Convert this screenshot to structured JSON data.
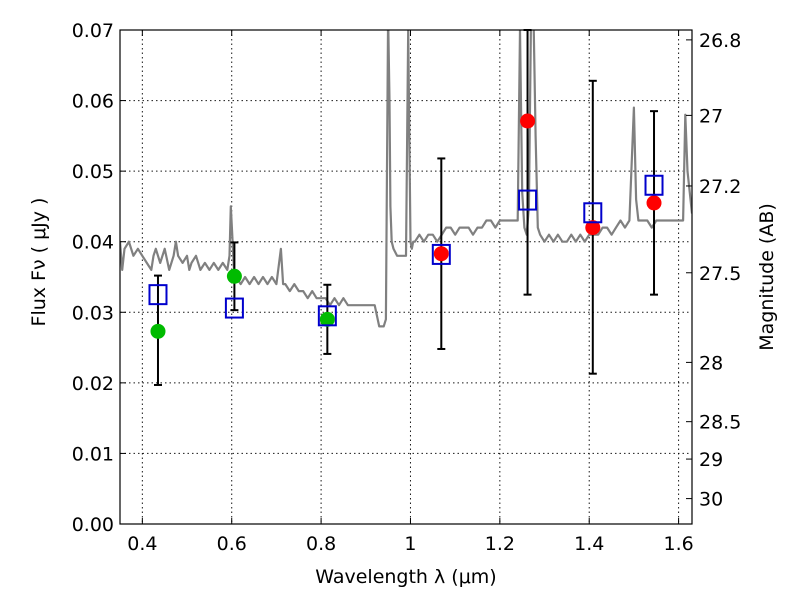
{
  "chart_data": {
    "type": "scatter",
    "xlabel": "Wavelength  λ (μm)",
    "ylabel": "Flux  Fν  ( μJy )",
    "y2label": "Magnitude (AB)",
    "xlim": [
      0.35,
      1.63
    ],
    "ylim": [
      0.0,
      0.07
    ],
    "grid": true,
    "x_ticks": [
      0.4,
      0.6,
      0.8,
      1.0,
      1.2,
      1.4,
      1.6
    ],
    "x_tick_labels": [
      "0.4",
      "0.6",
      "0.8",
      "1",
      "1.2",
      "1.4",
      "1.6"
    ],
    "y_ticks": [
      0.0,
      0.01,
      0.02,
      0.03,
      0.04,
      0.05,
      0.06,
      0.07
    ],
    "y_tick_labels": [
      "0.00",
      "0.01",
      "0.02",
      "0.03",
      "0.04",
      "0.05",
      "0.06",
      "0.07"
    ],
    "y2_ticks": [
      {
        "label": "26.8",
        "flux": 0.0686
      },
      {
        "label": "27",
        "flux": 0.0579
      },
      {
        "label": "27.2",
        "flux": 0.0479
      },
      {
        "label": "27.5",
        "flux": 0.0356
      },
      {
        "label": "28",
        "flux": 0.0229
      },
      {
        "label": "28.5",
        "flux": 0.0145
      },
      {
        "label": "29",
        "flux": 0.0092
      },
      {
        "label": "30",
        "flux": 0.0036
      }
    ],
    "colors": {
      "model": "#808080",
      "green_points": "#00bb00",
      "red_points": "#ff0000",
      "model_photometry": "#0000cc",
      "error_bars": "#000000"
    },
    "series": [
      {
        "values": [
          {
            "x": 0.435,
            "y": 0.0273,
            "yerr": [
              0.0197,
              0.0352
            ]
          },
          {
            "x": 0.606,
            "y": 0.0351,
            "yerr": [
              0.0303,
              0.0399
            ]
          },
          {
            "x": 0.814,
            "y": 0.029,
            "yerr": [
              0.0241,
              0.0339
            ]
          }
        ]
      },
      {
        "values": [
          {
            "x": 1.069,
            "y": 0.0383,
            "yerr": [
              0.0248,
              0.0518
            ]
          },
          {
            "x": 1.262,
            "y": 0.0571,
            "yerr": [
              0.0325,
              0.07
            ]
          },
          {
            "x": 1.408,
            "y": 0.042,
            "yerr": [
              0.0213,
              0.0628
            ]
          },
          {
            "x": 1.545,
            "y": 0.0455,
            "yerr": [
              0.0325,
              0.0585
            ]
          }
        ]
      },
      {
        "marker": "square",
        "values": [
          {
            "x": 0.435,
            "y": 0.0325
          },
          {
            "x": 0.606,
            "y": 0.0306
          },
          {
            "x": 0.814,
            "y": 0.0295
          },
          {
            "x": 1.069,
            "y": 0.0382
          },
          {
            "x": 1.262,
            "y": 0.0459
          },
          {
            "x": 1.408,
            "y": 0.0441
          },
          {
            "x": 1.545,
            "y": 0.048
          }
        ]
      },
      {
        "type": "line",
        "x": [
          0.35,
          0.355,
          0.36,
          0.37,
          0.38,
          0.39,
          0.4,
          0.41,
          0.42,
          0.425,
          0.43,
          0.44,
          0.45,
          0.46,
          0.47,
          0.475,
          0.48,
          0.49,
          0.5,
          0.505,
          0.51,
          0.52,
          0.53,
          0.54,
          0.55,
          0.56,
          0.57,
          0.58,
          0.59,
          0.595,
          0.598,
          0.602,
          0.605,
          0.61,
          0.62,
          0.63,
          0.64,
          0.65,
          0.66,
          0.67,
          0.68,
          0.69,
          0.7,
          0.71,
          0.715,
          0.72,
          0.73,
          0.74,
          0.75,
          0.76,
          0.77,
          0.78,
          0.79,
          0.8,
          0.81,
          0.82,
          0.83,
          0.84,
          0.85,
          0.86,
          0.87,
          0.88,
          0.89,
          0.9,
          0.91,
          0.92,
          0.93,
          0.94,
          0.945,
          0.95,
          0.953,
          0.955,
          0.958,
          0.962,
          0.97,
          0.98,
          0.99,
          0.995,
          1.0,
          1.003,
          1.006,
          1.01,
          1.02,
          1.03,
          1.04,
          1.05,
          1.06,
          1.07,
          1.08,
          1.09,
          1.1,
          1.11,
          1.12,
          1.13,
          1.14,
          1.15,
          1.16,
          1.17,
          1.18,
          1.19,
          1.2,
          1.21,
          1.22,
          1.23,
          1.24,
          1.245,
          1.25,
          1.255,
          1.26,
          1.265,
          1.27,
          1.275,
          1.28,
          1.285,
          1.29,
          1.3,
          1.31,
          1.32,
          1.33,
          1.34,
          1.35,
          1.36,
          1.37,
          1.38,
          1.39,
          1.4,
          1.41,
          1.42,
          1.43,
          1.44,
          1.45,
          1.46,
          1.47,
          1.48,
          1.49,
          1.5,
          1.505,
          1.51,
          1.52,
          1.53,
          1.54,
          1.55,
          1.56,
          1.57,
          1.58,
          1.59,
          1.6,
          1.61,
          1.615,
          1.62,
          1.63
        ],
        "y": [
          0.04,
          0.036,
          0.039,
          0.04,
          0.038,
          0.039,
          0.038,
          0.037,
          0.036,
          0.038,
          0.039,
          0.037,
          0.039,
          0.036,
          0.038,
          0.04,
          0.038,
          0.037,
          0.038,
          0.036,
          0.037,
          0.038,
          0.036,
          0.037,
          0.036,
          0.037,
          0.036,
          0.037,
          0.036,
          0.038,
          0.045,
          0.04,
          0.036,
          0.035,
          0.034,
          0.035,
          0.034,
          0.035,
          0.034,
          0.035,
          0.034,
          0.035,
          0.034,
          0.039,
          0.034,
          0.034,
          0.033,
          0.034,
          0.033,
          0.033,
          0.032,
          0.033,
          0.032,
          0.032,
          0.032,
          0.031,
          0.032,
          0.031,
          0.032,
          0.031,
          0.031,
          0.031,
          0.031,
          0.031,
          0.031,
          0.031,
          0.028,
          0.028,
          0.029,
          0.072,
          0.06,
          0.045,
          0.04,
          0.039,
          0.038,
          0.038,
          0.038,
          0.07,
          0.04,
          0.039,
          0.04,
          0.04,
          0.041,
          0.04,
          0.041,
          0.041,
          0.04,
          0.041,
          0.042,
          0.042,
          0.041,
          0.042,
          0.042,
          0.042,
          0.041,
          0.042,
          0.042,
          0.043,
          0.043,
          0.042,
          0.043,
          0.043,
          0.043,
          0.043,
          0.043,
          0.07,
          0.047,
          0.042,
          0.041,
          0.045,
          0.073,
          0.073,
          0.055,
          0.042,
          0.041,
          0.04,
          0.041,
          0.04,
          0.041,
          0.04,
          0.04,
          0.041,
          0.04,
          0.041,
          0.04,
          0.041,
          0.041,
          0.041,
          0.042,
          0.042,
          0.041,
          0.042,
          0.043,
          0.042,
          0.043,
          0.059,
          0.046,
          0.043,
          0.043,
          0.043,
          0.042,
          0.043,
          0.043,
          0.043,
          0.043,
          0.043,
          0.043,
          0.043,
          0.058,
          0.05,
          0.044
        ]
      }
    ]
  }
}
